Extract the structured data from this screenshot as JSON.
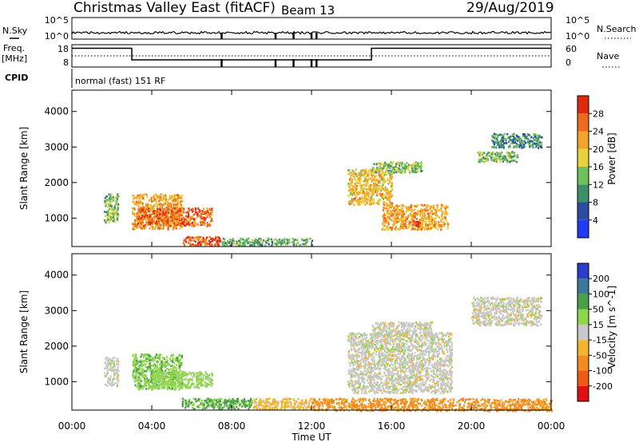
{
  "header": {
    "title": "Christmas Valley East (fitACF)",
    "beam": "Beam 13",
    "date": "29/Aug/2019"
  },
  "top_panels": {
    "nsky_label": "N.Sky",
    "nsky_tick_top": "10^5",
    "nsky_tick_bottom": "10^0",
    "nsearch_label": "N.Search",
    "nsearch_tick_top": "10^5",
    "nsearch_tick_bottom": "10^0",
    "freq_label_1": "Freq.",
    "freq_label_2": "[MHz]",
    "freq_tick_top": "18",
    "freq_tick_bottom": "8",
    "nave_label": "Nave",
    "nave_tick_top": "60",
    "nave_tick_bottom": "0",
    "cpid_label": "CPID",
    "cpid_text": "normal (fast) 151 RF"
  },
  "axes": {
    "xlabel": "Time UT",
    "ylabel": "Slant Range [km]",
    "x_ticks": [
      "00:00",
      "04:00",
      "08:00",
      "12:00",
      "16:00",
      "20:00",
      "00:00"
    ],
    "y_ticks": [
      "1000",
      "2000",
      "3000",
      "4000"
    ]
  },
  "colorbars": {
    "power_label": "Power [dB]",
    "power_ticks": [
      "4",
      "8",
      "12",
      "16",
      "20",
      "24",
      "28"
    ],
    "power_colors": [
      "#1f3cf0",
      "#2b4ca0",
      "#3d8f6a",
      "#6fbf5a",
      "#e6d23a",
      "#f3a52a",
      "#ef6a1f",
      "#e02a10"
    ],
    "velocity_label": "Velocity [m s^-1]",
    "velocity_ticks": [
      "200",
      "100",
      "50",
      "15",
      "-15",
      "-50",
      "-100",
      "-200"
    ],
    "velocity_colors": [
      "#2a3cc8",
      "#3a7a96",
      "#4aa04a",
      "#8ed64a",
      "#c8c8c8",
      "#f2b52e",
      "#f28a20",
      "#ee5a15",
      "#e01010"
    ]
  },
  "chart_data": {
    "type": "heatmap",
    "x_range_hours": [
      0,
      24
    ],
    "y_range_km": [
      200,
      4600
    ],
    "frequency_segments": [
      {
        "start_h": 0,
        "end_h": 3.0,
        "freq_mhz": 16.4
      },
      {
        "start_h": 3.0,
        "end_h": 15.0,
        "freq_mhz": 11.2
      },
      {
        "start_h": 15.0,
        "end_h": 24,
        "freq_mhz": 16.4
      }
    ],
    "data_gaps_hours": [
      7.5,
      10.2,
      11.1,
      12.0,
      12.25
    ],
    "power_regions": [
      {
        "t0": 1.6,
        "t1": 2.3,
        "r0": 900,
        "r1": 1700,
        "db": 14
      },
      {
        "t0": 3.0,
        "t1": 5.5,
        "r0": 700,
        "r1": 1700,
        "db": 22
      },
      {
        "t0": 3.2,
        "t1": 7.0,
        "r0": 800,
        "r1": 1300,
        "db": 26
      },
      {
        "t0": 5.5,
        "t1": 7.5,
        "r0": 250,
        "r1": 500,
        "db": 27
      },
      {
        "t0": 7.5,
        "t1": 12.0,
        "r0": 250,
        "r1": 450,
        "db": 12
      },
      {
        "t0": 13.8,
        "t1": 16.0,
        "r0": 1400,
        "r1": 2400,
        "db": 20
      },
      {
        "t0": 15.5,
        "t1": 18.8,
        "r0": 700,
        "r1": 1400,
        "db": 22
      },
      {
        "t0": 17.0,
        "t1": 17.4,
        "r0": 700,
        "r1": 950,
        "db": 28
      },
      {
        "t0": 15.0,
        "t1": 17.5,
        "r0": 2300,
        "r1": 2600,
        "db": 14
      },
      {
        "t0": 20.3,
        "t1": 22.3,
        "r0": 2600,
        "r1": 2900,
        "db": 14
      },
      {
        "t0": 21.0,
        "t1": 23.5,
        "r0": 3000,
        "r1": 3400,
        "db": 10
      }
    ],
    "velocity_regions": [
      {
        "t0": 1.6,
        "t1": 2.3,
        "r0": 900,
        "r1": 1700,
        "v": 0
      },
      {
        "t0": 3.0,
        "t1": 5.5,
        "r0": 800,
        "r1": 1800,
        "v": 40
      },
      {
        "t0": 4.0,
        "t1": 7.0,
        "r0": 850,
        "r1": 1300,
        "v": 30
      },
      {
        "t0": 5.5,
        "t1": 9.0,
        "r0": 250,
        "r1": 550,
        "v": 60
      },
      {
        "t0": 9.0,
        "t1": 12.0,
        "r0": 250,
        "r1": 550,
        "v": -30
      },
      {
        "t0": 12.0,
        "t1": 24.0,
        "r0": 200,
        "r1": 550,
        "v": -60
      },
      {
        "t0": 13.8,
        "t1": 19.0,
        "r0": 700,
        "r1": 2400,
        "v": 0
      },
      {
        "t0": 15.0,
        "t1": 18.0,
        "r0": 2300,
        "r1": 2700,
        "v": 0
      },
      {
        "t0": 20.0,
        "t1": 23.5,
        "r0": 2600,
        "r1": 3400,
        "v": 0
      }
    ]
  }
}
